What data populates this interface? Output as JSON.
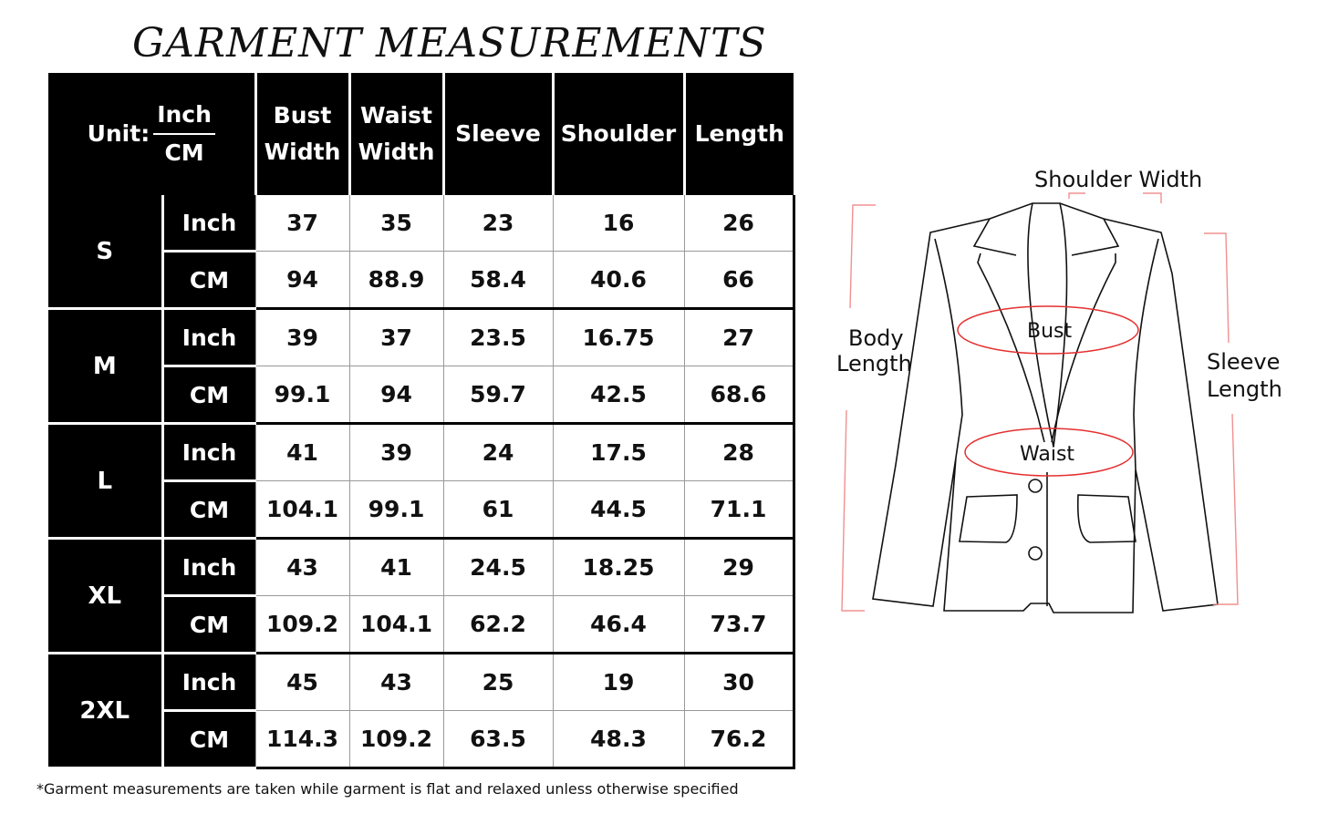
{
  "title": "GARMENT MEASUREMENTS",
  "header": {
    "unit_label": "Unit:",
    "unit_inch": "Inch",
    "unit_cm": "CM",
    "columns": [
      [
        "Bust",
        "Width"
      ],
      [
        "Waist",
        "Width"
      ],
      [
        "Sleeve"
      ],
      [
        "Shoulder"
      ],
      [
        "Length"
      ]
    ]
  },
  "rows": [
    {
      "size": "S",
      "inch": [
        "37",
        "35",
        "23",
        "16",
        "26"
      ],
      "cm": [
        "94",
        "88.9",
        "58.4",
        "40.6",
        "66"
      ]
    },
    {
      "size": "M",
      "inch": [
        "39",
        "37",
        "23.5",
        "16.75",
        "27"
      ],
      "cm": [
        "99.1",
        "94",
        "59.7",
        "42.5",
        "68.6"
      ]
    },
    {
      "size": "L",
      "inch": [
        "41",
        "39",
        "24",
        "17.5",
        "28"
      ],
      "cm": [
        "104.1",
        "99.1",
        "61",
        "44.5",
        "71.1"
      ]
    },
    {
      "size": "XL",
      "inch": [
        "43",
        "41",
        "24.5",
        "18.25",
        "29"
      ],
      "cm": [
        "109.2",
        "104.1",
        "62.2",
        "46.4",
        "73.7"
      ]
    },
    {
      "size": "2XL",
      "inch": [
        "45",
        "43",
        "25",
        "19",
        "30"
      ],
      "cm": [
        "114.3",
        "109.2",
        "63.5",
        "48.3",
        "76.2"
      ]
    }
  ],
  "diagram": {
    "shoulder": "Shoulder Width",
    "body": [
      "Body",
      "Length"
    ],
    "sleeve": [
      "Sleeve",
      "Length"
    ],
    "bust": "Bust",
    "waist": "Waist",
    "marker_color": "#e53030"
  },
  "footnote": "*Garment measurements are taken while garment is flat and relaxed unless otherwise specified"
}
